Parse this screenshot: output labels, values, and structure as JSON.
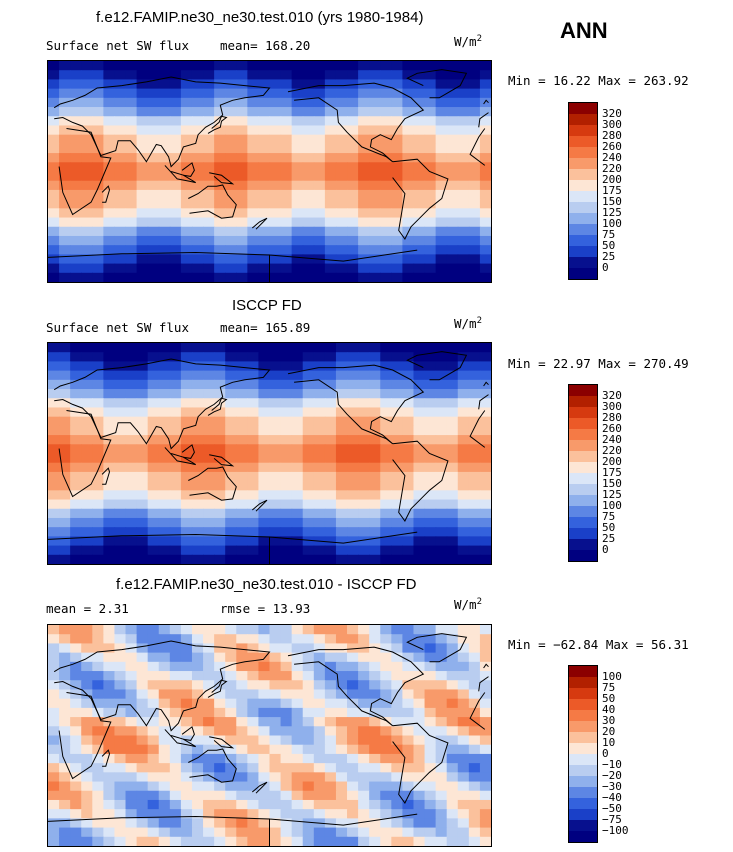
{
  "season_label": "ANN",
  "panels": [
    {
      "title": "f.e12.FAMIP.ne30_ne30.test.010 (yrs 1980-1984)",
      "left_text": "Surface net SW flux",
      "stat_text": "mean= 168.20",
      "units_base": "W/m",
      "units_exp": "2",
      "minmax": "Min =  16.22 Max = 263.92",
      "cbar_labels": [
        "320",
        "300",
        "280",
        "260",
        "240",
        "220",
        "200",
        "175",
        "150",
        "125",
        "100",
        "75",
        "50",
        "25",
        "0"
      ],
      "cbar_colors": [
        "#8b0000",
        "#b22000",
        "#d63a10",
        "#ec5a28",
        "#f57a45",
        "#f89a6a",
        "#fbc19c",
        "#fde6d5",
        "#dbe6f7",
        "#b9cdf0",
        "#8fb0ec",
        "#5d86e4",
        "#3462dd",
        "#1a40c8",
        "#07108e",
        "#000080"
      ],
      "kind": "model"
    },
    {
      "title": "ISCCP FD",
      "left_text": "Surface net SW flux",
      "stat_text": "mean= 165.89",
      "units_base": "W/m",
      "units_exp": "2",
      "minmax": "Min =  22.97 Max = 270.49",
      "cbar_labels": [
        "320",
        "300",
        "280",
        "260",
        "240",
        "220",
        "200",
        "175",
        "150",
        "125",
        "100",
        "75",
        "50",
        "25",
        "0"
      ],
      "cbar_colors": [
        "#8b0000",
        "#b22000",
        "#d63a10",
        "#ec5a28",
        "#f57a45",
        "#f89a6a",
        "#fbc19c",
        "#fde6d5",
        "#dbe6f7",
        "#b9cdf0",
        "#8fb0ec",
        "#5d86e4",
        "#3462dd",
        "#1a40c8",
        "#07108e",
        "#000080"
      ],
      "kind": "obs"
    },
    {
      "title": "f.e12.FAMIP.ne30_ne30.test.010 - ISCCP FD",
      "left_text": "mean =   2.31",
      "stat_text": "rmse =  13.93",
      "units_base": "W/m",
      "units_exp": "2",
      "minmax": "Min = −62.84 Max =  56.31",
      "cbar_labels": [
        "100",
        "75",
        "50",
        "40",
        "30",
        "20",
        "10",
        "0",
        "−10",
        "−20",
        "−30",
        "−40",
        "−50",
        "−75",
        "−100"
      ],
      "cbar_colors": [
        "#8b0000",
        "#b22000",
        "#d63a10",
        "#ec5a28",
        "#f57a45",
        "#f89a6a",
        "#fbc19c",
        "#fde6d5",
        "#dbe6f7",
        "#b9cdf0",
        "#8fb0ec",
        "#5d86e4",
        "#3462dd",
        "#1a40c8",
        "#07108e",
        "#000080"
      ],
      "kind": "diff"
    }
  ]
}
